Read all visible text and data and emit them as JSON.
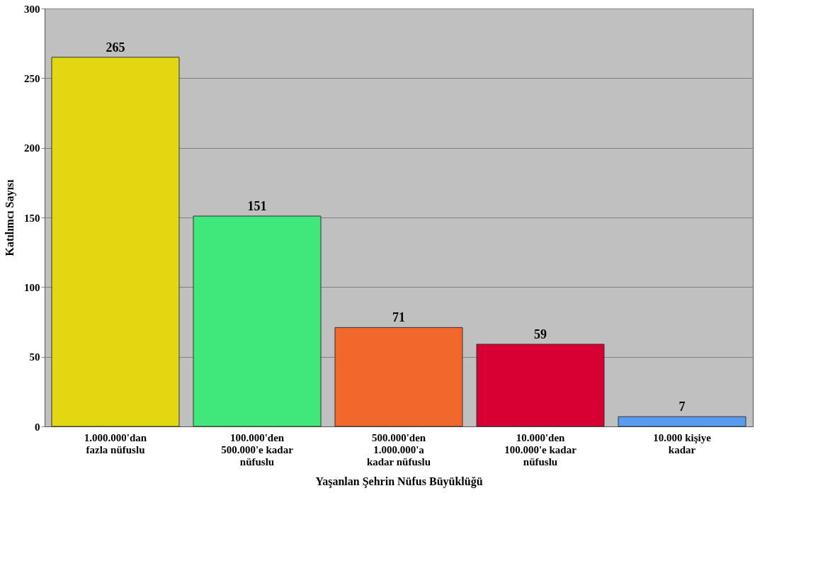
{
  "chart_data": {
    "type": "bar",
    "xlabel": "Yaşanlan Şehrin Nüfus Büyüklüğü",
    "ylabel": "Katılımcı Sayısı",
    "categories": [
      "1.000.000'dan fazla nüfuslu",
      "100.000'den 500.000'e kadar nüfuslu",
      "500.000'den 1.000.000'a kadar nüfuslu",
      "10.000'den 100.000'e kadar nüfuslu",
      "10.000 kişiye kadar"
    ],
    "values": [
      265,
      151,
      71,
      59,
      7
    ],
    "colors": [
      "#e3d712",
      "#40e87c",
      "#f2682c",
      "#d80032",
      "#5b9bef"
    ],
    "ylim": [
      0,
      300
    ],
    "yticks": [
      0,
      50,
      100,
      150,
      200,
      250,
      300
    ],
    "grid": "y",
    "data_labels": true
  }
}
